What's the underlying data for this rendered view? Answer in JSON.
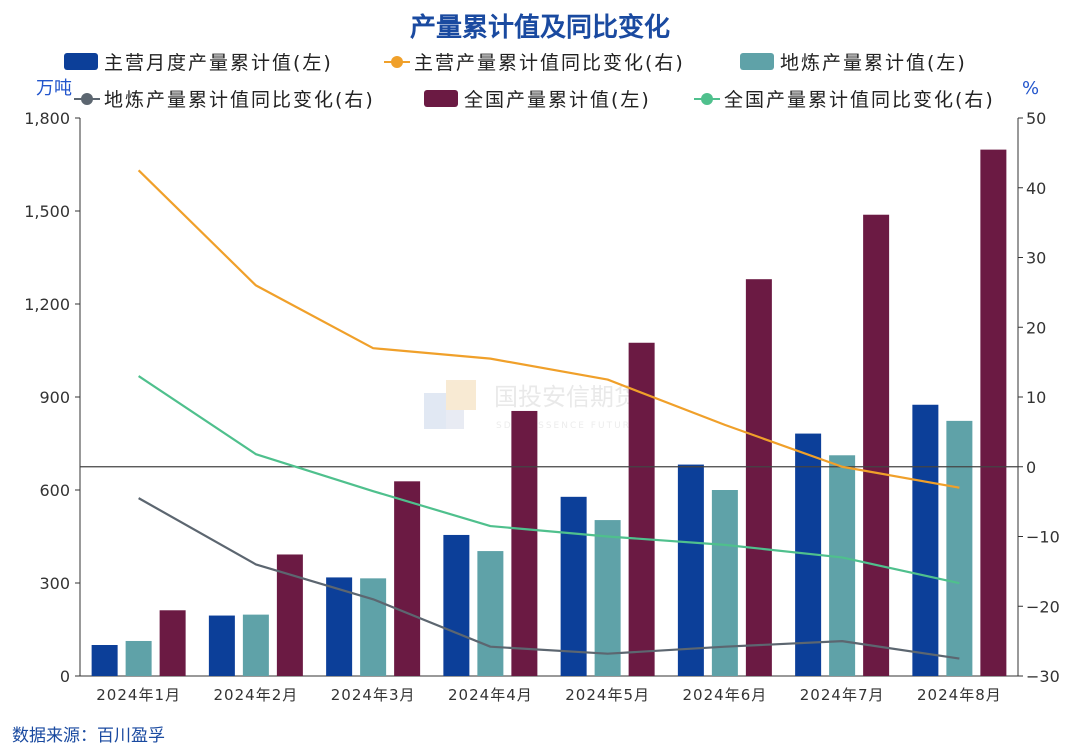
{
  "colors": {
    "title": "#1a4aa0",
    "unit": "#2255cc",
    "source": "#1a4aa0",
    "zero_line": "#444444",
    "axis": "#333333"
  },
  "watermark": {
    "text": "国投安信期货",
    "sub": "SDIC ESSENCE FUTURES"
  },
  "source": "数据来源：百川盈孚",
  "chart_data": {
    "type": "bar",
    "title": "产量累计值及同比变化",
    "left_unit": "万吨",
    "right_unit": "%",
    "categories": [
      "2024年1月",
      "2024年2月",
      "2024年3月",
      "2024年4月",
      "2024年5月",
      "2024年6月",
      "2024年7月",
      "2024年8月"
    ],
    "left_axis": {
      "ylim": [
        0,
        1800
      ],
      "ticks": [
        "0",
        "300",
        "600",
        "900",
        "1,200",
        "1,500",
        "1,800"
      ],
      "tick_values": [
        0,
        300,
        600,
        900,
        1200,
        1500,
        1800
      ]
    },
    "right_axis": {
      "ylim": [
        -30,
        50
      ],
      "ticks": [
        "−30",
        "−20",
        "−10",
        "0",
        "10",
        "20",
        "30",
        "40",
        "50"
      ],
      "tick_values": [
        -30,
        -20,
        -10,
        0,
        10,
        20,
        30,
        40,
        50
      ]
    },
    "bar_series": [
      {
        "name": "主营月度产量累计值(左)",
        "color": "#0c3f99",
        "values": [
          100,
          195,
          318,
          455,
          578,
          682,
          782,
          875
        ]
      },
      {
        "name": "地炼产量累计值(左)",
        "color": "#5fa2a8",
        "values": [
          113,
          198,
          315,
          403,
          503,
          600,
          712,
          823
        ]
      },
      {
        "name": "全国产量累计值(左)",
        "color": "#6b1a43",
        "values": [
          212,
          392,
          628,
          855,
          1075,
          1280,
          1488,
          1698
        ]
      }
    ],
    "line_series": [
      {
        "name": "主营产量累计值同比变化(右)",
        "color": "#f0a02a",
        "values": [
          42.5,
          26.0,
          17.0,
          15.5,
          12.5,
          6.0,
          0.0,
          -3.0
        ]
      },
      {
        "name": "地炼产量累计值同比变化(右)",
        "color": "#5c6670",
        "values": [
          -4.5,
          -14.0,
          -19.0,
          -25.8,
          -26.8,
          -25.8,
          -25.0,
          -27.5
        ]
      },
      {
        "name": "全国产量累计值同比变化(右)",
        "color": "#4fc08d",
        "values": [
          13.0,
          1.8,
          -3.5,
          -8.5,
          -10.0,
          -11.2,
          -13.0,
          -16.7
        ]
      }
    ],
    "legend_position": "top",
    "grid": false
  }
}
